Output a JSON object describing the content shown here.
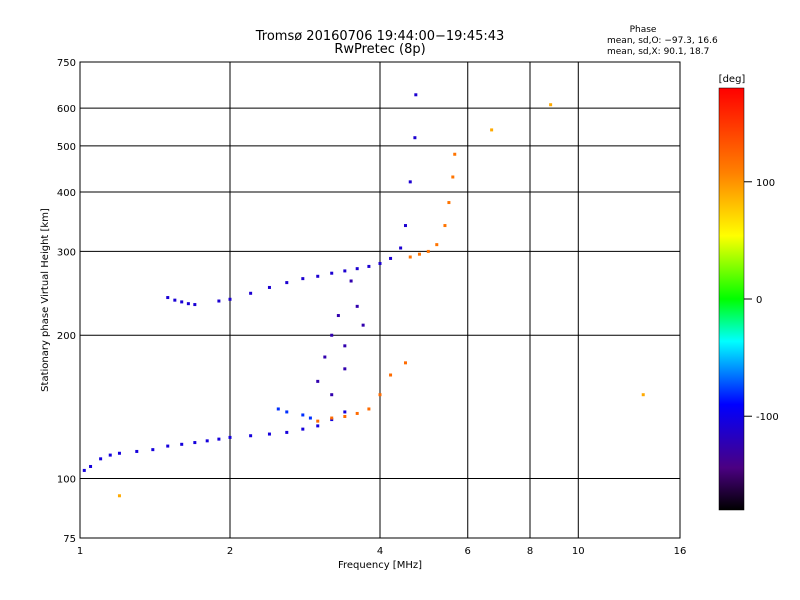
{
  "chart_data": {
    "type": "scatter",
    "title": "Tromsø 20160706 19:44:00−19:45:43",
    "subtitle": "RwPretec (8p)",
    "xlabel": "Frequency [MHz]",
    "ylabel": "Stationary phase Virtual Height [km]",
    "x_scale": "log",
    "y_scale": "log",
    "xlim": [
      1,
      16
    ],
    "ylim": [
      75,
      750
    ],
    "x_ticks": [
      1,
      2,
      4,
      6,
      8,
      10,
      16
    ],
    "y_ticks": [
      75,
      100,
      200,
      300,
      400,
      500,
      600,
      750
    ],
    "grid": true,
    "legend": {
      "title": "Phase",
      "lines": [
        "mean, sd,O:  −97.3, 16.6",
        "mean, sd,X:  90.1, 18.7"
      ],
      "position": "top-right"
    },
    "colorbar": {
      "label": "[deg]",
      "range": [
        -180,
        180
      ],
      "ticks": [
        100,
        0,
        -100
      ],
      "colormap": "rainbow"
    },
    "traces": [
      {
        "desc": "low O trace",
        "phase": -105,
        "points": [
          [
            1.02,
            104
          ],
          [
            1.05,
            106
          ],
          [
            1.1,
            110
          ],
          [
            1.15,
            112
          ],
          [
            1.2,
            113
          ],
          [
            1.3,
            114
          ],
          [
            1.4,
            115
          ],
          [
            1.5,
            117
          ],
          [
            1.6,
            118
          ],
          [
            1.7,
            119
          ],
          [
            1.8,
            120
          ],
          [
            1.9,
            121
          ],
          [
            2.0,
            122
          ],
          [
            2.2,
            123
          ],
          [
            2.4,
            124
          ],
          [
            2.6,
            125
          ],
          [
            2.8,
            127
          ],
          [
            3.0,
            129
          ],
          [
            3.2,
            133
          ],
          [
            3.4,
            138
          ]
        ]
      },
      {
        "desc": "F trace O",
        "phase": -110,
        "points": [
          [
            1.9,
            236
          ],
          [
            2.0,
            238
          ],
          [
            2.2,
            245
          ],
          [
            2.4,
            252
          ],
          [
            2.6,
            258
          ],
          [
            2.8,
            263
          ],
          [
            3.0,
            266
          ],
          [
            3.2,
            270
          ],
          [
            3.4,
            273
          ],
          [
            3.6,
            276
          ],
          [
            3.8,
            279
          ],
          [
            4.0,
            283
          ],
          [
            4.2,
            290
          ],
          [
            4.4,
            305
          ],
          [
            4.5,
            340
          ],
          [
            4.6,
            420
          ],
          [
            4.7,
            520
          ],
          [
            4.72,
            640
          ]
        ]
      },
      {
        "desc": "short trace",
        "phase": -108,
        "points": [
          [
            1.5,
            240
          ],
          [
            1.55,
            237
          ],
          [
            1.6,
            235
          ],
          [
            1.65,
            233
          ],
          [
            1.7,
            232
          ]
        ]
      },
      {
        "desc": "scatter cloud",
        "phase": -125,
        "points": [
          [
            3.0,
            160
          ],
          [
            3.1,
            180
          ],
          [
            3.2,
            200
          ],
          [
            3.3,
            220
          ],
          [
            3.4,
            190
          ],
          [
            3.5,
            260
          ],
          [
            3.6,
            230
          ],
          [
            3.7,
            210
          ],
          [
            3.2,
            150
          ],
          [
            3.4,
            170
          ]
        ]
      },
      {
        "desc": "X trace E",
        "phase": 120,
        "points": [
          [
            3.0,
            132
          ],
          [
            3.2,
            134
          ],
          [
            3.4,
            135
          ],
          [
            3.6,
            137
          ],
          [
            3.8,
            140
          ],
          [
            4.0,
            150
          ],
          [
            4.2,
            165
          ],
          [
            4.5,
            175
          ]
        ]
      },
      {
        "desc": "X trace F",
        "phase": 115,
        "points": [
          [
            4.6,
            292
          ],
          [
            4.8,
            296
          ],
          [
            5.0,
            300
          ],
          [
            5.2,
            310
          ],
          [
            5.4,
            340
          ],
          [
            5.5,
            380
          ],
          [
            5.6,
            430
          ],
          [
            5.65,
            480
          ]
        ]
      },
      {
        "desc": "mid trace",
        "phase": -80,
        "points": [
          [
            2.5,
            140
          ],
          [
            2.6,
            138
          ],
          [
            2.8,
            136
          ],
          [
            2.9,
            134
          ]
        ]
      },
      {
        "desc": "isolated",
        "phase": 90,
        "points": [
          [
            1.2,
            92
          ],
          [
            6.7,
            540
          ],
          [
            8.8,
            610
          ],
          [
            13.5,
            150
          ]
        ]
      }
    ]
  }
}
